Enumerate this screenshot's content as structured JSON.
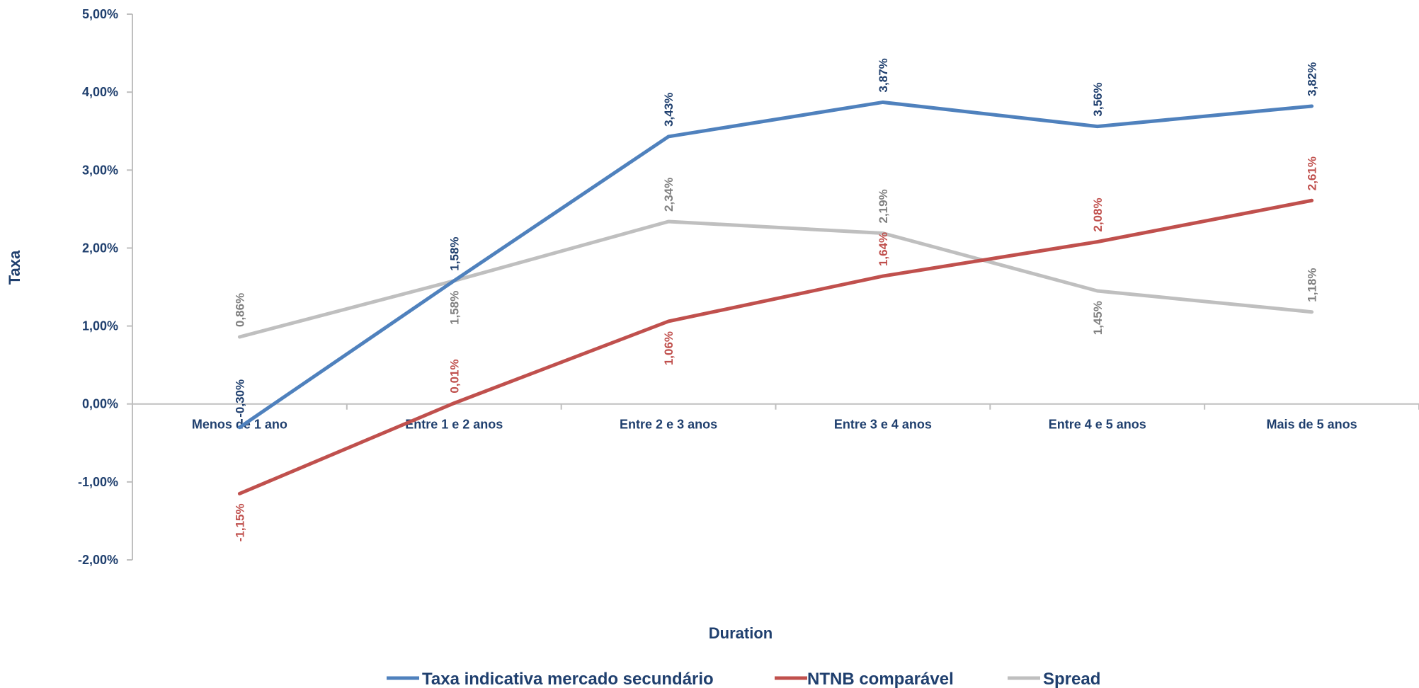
{
  "chart_data": {
    "type": "line",
    "categories": [
      "Menos de 1 ano",
      "Entre 1 e 2 anos",
      "Entre 2 e 3 anos",
      "Entre 3 e 4 anos",
      "Entre 4 e 5 anos",
      "Mais de 5 anos"
    ],
    "series": [
      {
        "name": "Taxa indicativa mercado secundário",
        "color": "#4f81bd",
        "label_color": "#1f3f6e",
        "values": [
          -0.3,
          1.58,
          3.43,
          3.87,
          3.56,
          3.82
        ],
        "labels": [
          "-0,30%",
          "1,58%",
          "3,43%",
          "3,87%",
          "3,56%",
          "3,82%"
        ],
        "label_positions": [
          "above",
          "above",
          "above",
          "above",
          "above",
          "above"
        ]
      },
      {
        "name": "NTNB comparável",
        "color": "#c0504d",
        "label_color": "#c0504d",
        "values": [
          -1.15,
          0.01,
          1.06,
          1.64,
          2.08,
          2.61
        ],
        "labels": [
          "-1,15%",
          "0,01%",
          "1,06%",
          "1,64%",
          "2,08%",
          "2,61%"
        ],
        "label_positions": [
          "below",
          "above",
          "below",
          "above",
          "above",
          "above"
        ]
      },
      {
        "name": "Spread",
        "color": "#bfbfbf",
        "label_color": "#7f7f7f",
        "values": [
          0.86,
          1.58,
          2.34,
          2.19,
          1.45,
          1.18
        ],
        "labels": [
          "0,86%",
          "1,58%",
          "2,34%",
          "2,19%",
          "1,45%",
          "1,18%"
        ],
        "label_positions": [
          "above",
          "below",
          "above",
          "above",
          "below",
          "above"
        ]
      }
    ],
    "y_ticks": [
      -2,
      -1,
      0,
      1,
      2,
      3,
      4,
      5
    ],
    "y_tick_labels": [
      "-2,00%",
      "-1,00%",
      "0,00%",
      "1,00%",
      "2,00%",
      "3,00%",
      "4,00%",
      "5,00%"
    ],
    "ylim": [
      -2,
      5
    ],
    "xlabel": "Duration",
    "ylabel": "Taxa",
    "title": "",
    "grid": false,
    "legend_position": "bottom"
  }
}
